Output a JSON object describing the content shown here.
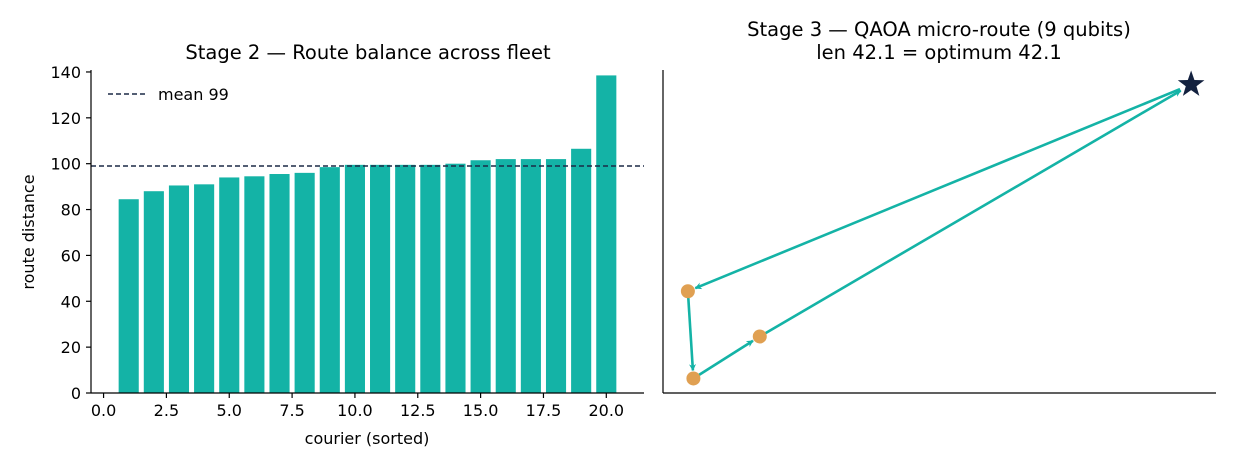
{
  "chart_data": [
    {
      "type": "bar",
      "title": "Stage 2 — Route balance across fleet",
      "xlabel": "courier (sorted)",
      "ylabel": "route distance",
      "x": [
        1,
        2,
        3,
        4,
        5,
        6,
        7,
        8,
        9,
        10,
        11,
        12,
        13,
        14,
        15,
        16,
        17,
        18,
        19,
        20
      ],
      "values": [
        84.5,
        88,
        90.5,
        91,
        94,
        94.5,
        95.5,
        96,
        98.5,
        99.5,
        99.5,
        99.5,
        99.5,
        100,
        101.5,
        102,
        102,
        102,
        106.5,
        138.5
      ],
      "xlim": [
        -0.5,
        21.5
      ],
      "ylim": [
        0,
        145
      ],
      "xticks": [
        0,
        2.5,
        5,
        7.5,
        10,
        12.5,
        15,
        17.5,
        20
      ],
      "xtick_labels": [
        "0.0",
        "2.5",
        "5.0",
        "7.5",
        "10.0",
        "12.5",
        "15.0",
        "17.5",
        "20.0"
      ],
      "yticks": [
        0,
        20,
        40,
        60,
        80,
        100,
        120,
        140
      ],
      "ytick_labels": [
        "0",
        "20",
        "40",
        "60",
        "80",
        "100",
        "120",
        "140"
      ],
      "reference_line": {
        "value": 99,
        "style": "dashed",
        "color": "#1b2a47",
        "label": "mean 99"
      },
      "legend": {
        "placement": "top-left",
        "entries": [
          "mean 99"
        ]
      },
      "bar_color": "#14b3a6",
      "grid": false
    },
    {
      "type": "scatter",
      "title": "Stage 3 — QAOA micro-route (9 qubits)",
      "subtitle": "len 42.1 = optimum 42.1",
      "xlim": [
        0,
        100
      ],
      "ylim": [
        0,
        100
      ],
      "points": [
        {
          "role": "depot",
          "marker": "star",
          "color": "#13213f",
          "x": 95.5,
          "y": 95.5
        },
        {
          "role": "stop",
          "marker": "circle",
          "color": "#e0a052",
          "x": 4.5,
          "y": 31.5
        },
        {
          "role": "stop",
          "marker": "circle",
          "color": "#e0a052",
          "x": 5.5,
          "y": 4.5
        },
        {
          "role": "stop",
          "marker": "circle",
          "color": "#e0a052",
          "x": 17.5,
          "y": 17.5
        }
      ],
      "route_order": [
        0,
        1,
        2,
        3,
        0
      ],
      "route_color": "#14b3a6",
      "axes_ticks_shown": false,
      "grid": false
    }
  ]
}
